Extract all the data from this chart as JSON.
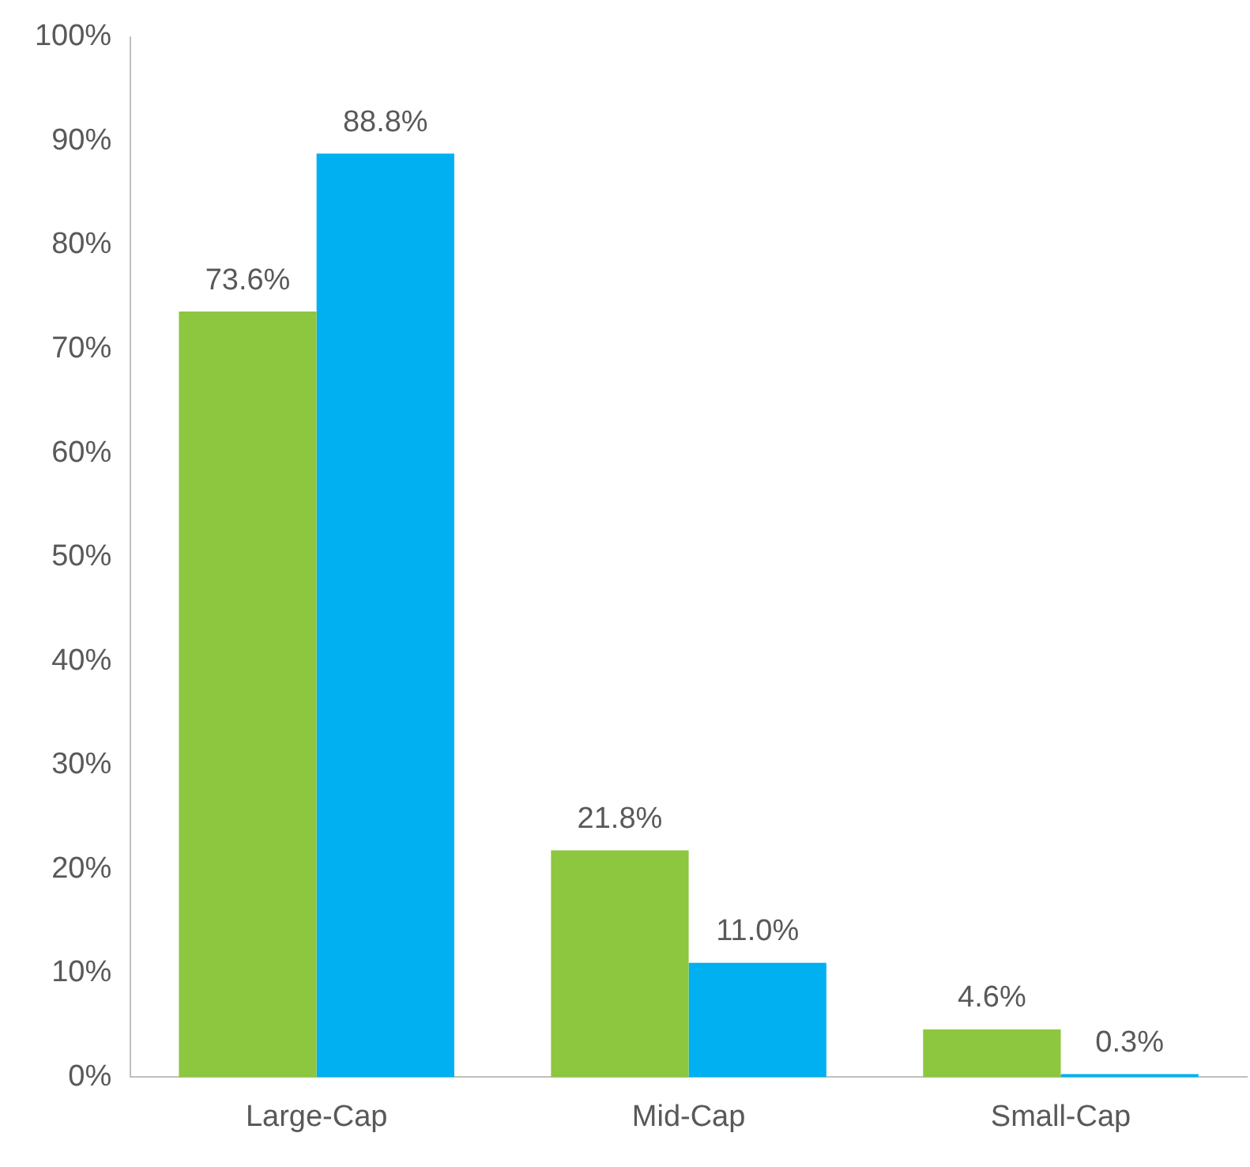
{
  "chart_data": {
    "type": "bar",
    "categories": [
      "Large-Cap",
      "Mid-Cap",
      "Small-Cap"
    ],
    "series": [
      {
        "color": "#8dc63f",
        "values": [
          73.6,
          21.8,
          4.6
        ],
        "value_labels": [
          "73.6%",
          "21.8%",
          "4.6%"
        ]
      },
      {
        "color": "#00b0f0",
        "values": [
          88.8,
          11.0,
          0.3
        ],
        "value_labels": [
          "88.8%",
          "11.0%",
          "0.3%"
        ]
      }
    ],
    "ylim": [
      0,
      100
    ],
    "yticks": [
      {
        "value": 0,
        "label": "0%"
      },
      {
        "value": 10,
        "label": "10%"
      },
      {
        "value": 20,
        "label": "20%"
      },
      {
        "value": 30,
        "label": "30%"
      },
      {
        "value": 40,
        "label": "40%"
      },
      {
        "value": 50,
        "label": "50%"
      },
      {
        "value": 60,
        "label": "60%"
      },
      {
        "value": 70,
        "label": "70%"
      },
      {
        "value": 80,
        "label": "80%"
      },
      {
        "value": 90,
        "label": "90%"
      },
      {
        "value": 100,
        "label": "100%"
      }
    ],
    "grid": false,
    "legend": false
  }
}
